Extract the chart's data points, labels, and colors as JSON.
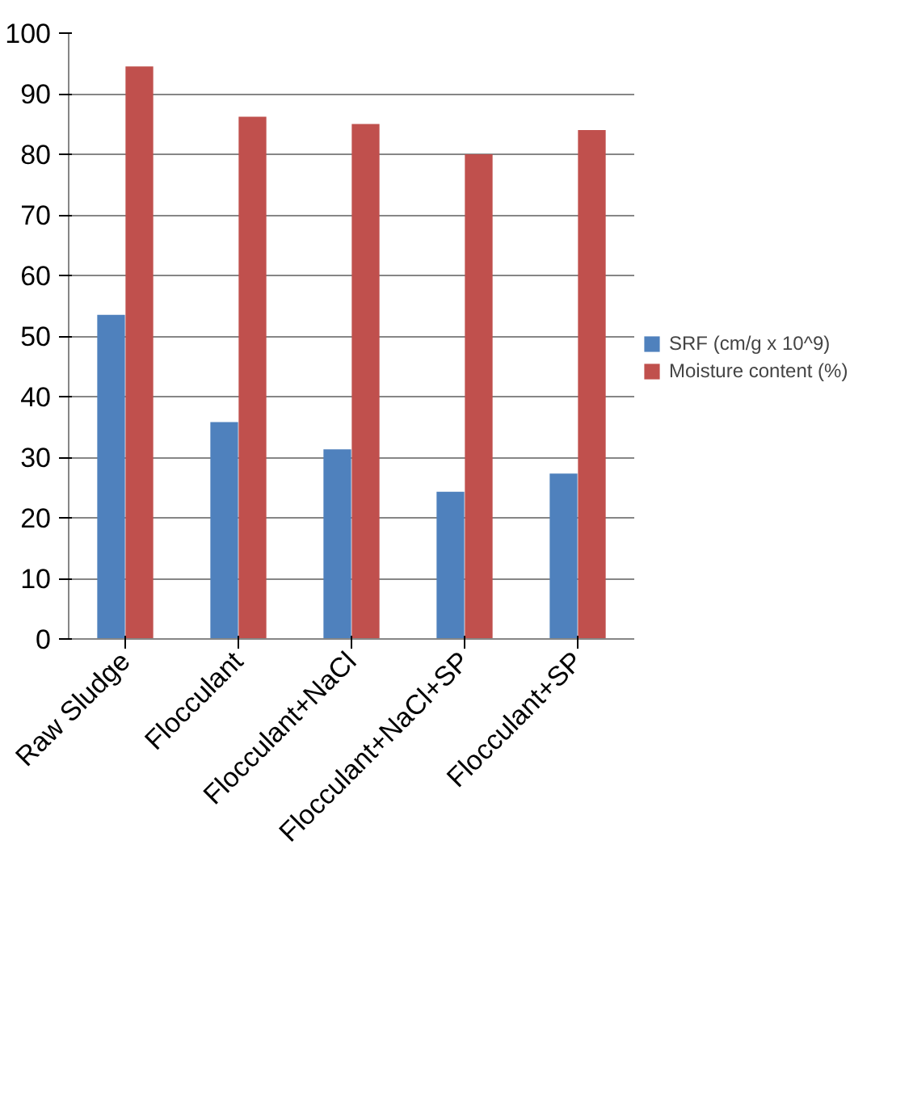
{
  "chart_data": {
    "type": "bar",
    "categories": [
      "Raw Sludge",
      "Flocculant",
      "Flocculant+NaCl",
      "Flocculant+NaCl+SP",
      "Flocculant+SP"
    ],
    "series": [
      {
        "name": "SRF (cm/g x 10^9)",
        "color": "#4f81bd",
        "values": [
          53.5,
          35.8,
          31.3,
          24.3,
          27.3
        ]
      },
      {
        "name": "Moisture content (%)",
        "color": "#c0504d",
        "values": [
          94.5,
          86.2,
          85,
          80,
          84
        ]
      }
    ],
    "ylim": [
      0,
      100
    ],
    "yticks": [
      0,
      10,
      20,
      30,
      40,
      50,
      60,
      70,
      80,
      90,
      100
    ],
    "grid": "y",
    "legend": "right"
  }
}
